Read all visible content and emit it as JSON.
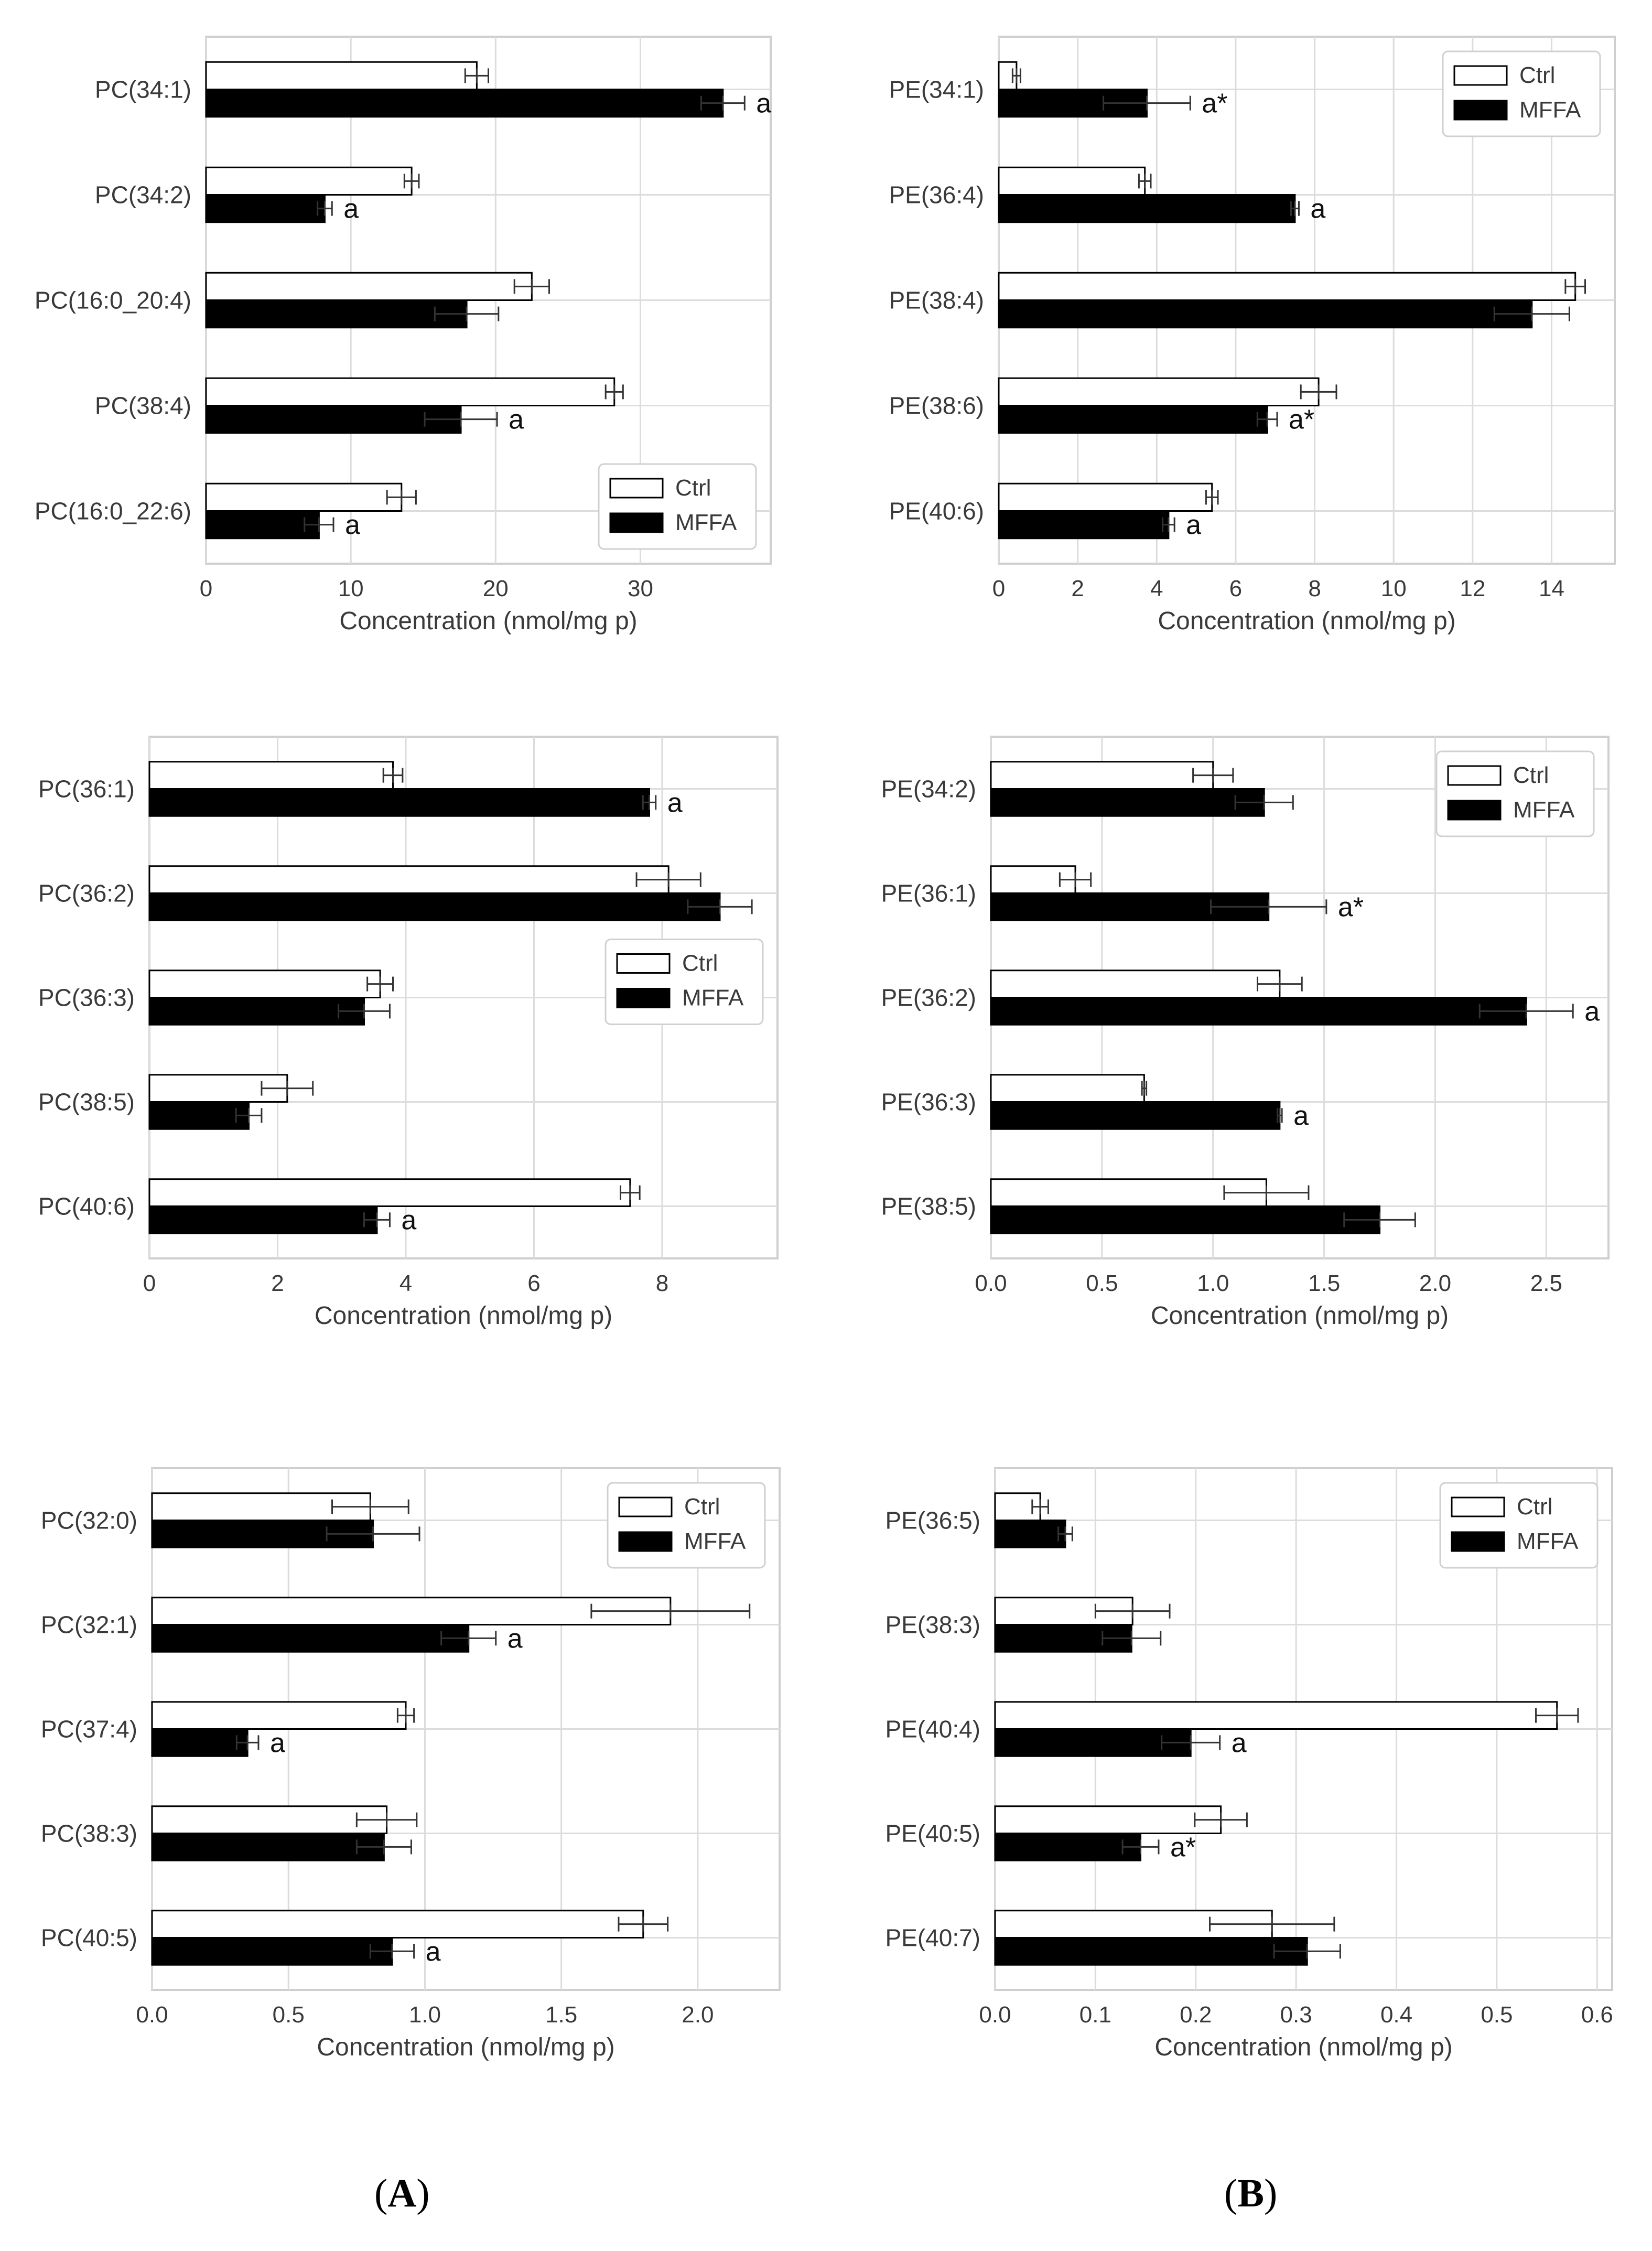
{
  "figure": {
    "panel_labels": [
      {
        "prefix": "(",
        "letter": "A",
        "suffix": ")"
      },
      {
        "prefix": "(",
        "letter": "B",
        "suffix": ")"
      }
    ],
    "legend_labels": [
      "Ctrl",
      "MFFA"
    ],
    "series_colors": {
      "Ctrl": "#ffffff",
      "MFFA": "#000000"
    }
  },
  "chart_data": [
    {
      "type": "bar",
      "orientation": "horizontal",
      "categories": [
        "PC(34:1)",
        "PC(34:2)",
        "PC(16:0_20:4)",
        "PC(38:4)",
        "PC(16:0_22:6)"
      ],
      "series": [
        {
          "name": "Ctrl",
          "values": [
            18.7,
            14.2,
            22.5,
            28.2,
            13.5
          ],
          "errors": [
            0.8,
            0.5,
            1.2,
            0.6,
            1.0
          ]
        },
        {
          "name": "MFFA",
          "values": [
            35.7,
            8.2,
            18.0,
            17.6,
            7.8
          ],
          "errors": [
            1.5,
            0.5,
            2.2,
            2.5,
            1.0
          ]
        }
      ],
      "annotations": [
        "a",
        "a",
        "",
        "a",
        "a"
      ],
      "xlabel": "Concentration (nmol/mg p)",
      "xlim": [
        0,
        39
      ],
      "xticks": [
        0,
        10,
        20,
        30
      ],
      "legend": "lower-right",
      "grid": true
    },
    {
      "type": "bar",
      "orientation": "horizontal",
      "categories": [
        "PE(34:1)",
        "PE(36:4)",
        "PE(38:4)",
        "PE(38:6)",
        "PE(40:6)"
      ],
      "series": [
        {
          "name": "Ctrl",
          "values": [
            0.45,
            3.7,
            14.6,
            8.1,
            5.4
          ],
          "errors": [
            0.1,
            0.15,
            0.25,
            0.45,
            0.15
          ]
        },
        {
          "name": "MFFA",
          "values": [
            3.75,
            7.5,
            13.5,
            6.8,
            4.3
          ],
          "errors": [
            1.1,
            0.1,
            0.95,
            0.25,
            0.15
          ]
        }
      ],
      "annotations": [
        "a*",
        "a",
        "",
        "a*",
        "a"
      ],
      "xlabel": "Concentration (nmol/mg p)",
      "xlim": [
        0,
        15.6
      ],
      "xticks": [
        0,
        2,
        4,
        6,
        8,
        10,
        12,
        14
      ],
      "legend": "upper-right",
      "grid": true
    },
    {
      "type": "bar",
      "orientation": "horizontal",
      "categories": [
        "PC(36:1)",
        "PC(36:2)",
        "PC(36:3)",
        "PC(38:5)",
        "PC(40:6)"
      ],
      "series": [
        {
          "name": "Ctrl",
          "values": [
            3.8,
            8.1,
            3.6,
            2.15,
            7.5
          ],
          "errors": [
            0.15,
            0.5,
            0.2,
            0.4,
            0.15
          ]
        },
        {
          "name": "MFFA",
          "values": [
            7.8,
            8.9,
            3.35,
            1.55,
            3.55
          ],
          "errors": [
            0.1,
            0.5,
            0.4,
            0.2,
            0.2
          ]
        }
      ],
      "annotations": [
        "a",
        "",
        "",
        "",
        "a"
      ],
      "xlabel": "Concentration (nmol/mg p)",
      "xlim": [
        0,
        9.8
      ],
      "xticks": [
        0,
        2,
        4,
        6,
        8
      ],
      "legend": "center-right",
      "grid": true
    },
    {
      "type": "bar",
      "orientation": "horizontal",
      "categories": [
        "PE(34:2)",
        "PE(36:1)",
        "PE(36:2)",
        "PE(36:3)",
        "PE(38:5)"
      ],
      "series": [
        {
          "name": "Ctrl",
          "values": [
            1.0,
            0.38,
            1.3,
            0.69,
            1.24
          ],
          "errors": [
            0.09,
            0.07,
            0.1,
            0.01,
            0.19
          ]
        },
        {
          "name": "MFFA",
          "values": [
            1.23,
            1.25,
            2.41,
            1.3,
            1.75
          ],
          "errors": [
            0.13,
            0.26,
            0.21,
            0.01,
            0.16
          ]
        }
      ],
      "annotations": [
        "",
        "a*",
        "a",
        "a",
        ""
      ],
      "xlabel": "Concentration (nmol/mg p)",
      "xlim": [
        0,
        2.78
      ],
      "xticks": [
        0.0,
        0.5,
        1.0,
        1.5,
        2.0,
        2.5
      ],
      "legend": "upper-right",
      "grid": true
    },
    {
      "type": "bar",
      "orientation": "horizontal",
      "categories": [
        "PC(32:0)",
        "PC(32:1)",
        "PC(37:4)",
        "PC(38:3)",
        "PC(40:5)"
      ],
      "series": [
        {
          "name": "Ctrl",
          "values": [
            0.8,
            1.9,
            0.93,
            0.86,
            1.8
          ],
          "errors": [
            0.14,
            0.29,
            0.03,
            0.11,
            0.09
          ]
        },
        {
          "name": "MFFA",
          "values": [
            0.81,
            1.16,
            0.35,
            0.85,
            0.88
          ],
          "errors": [
            0.17,
            0.1,
            0.04,
            0.1,
            0.08
          ]
        }
      ],
      "annotations": [
        "",
        "a",
        "a",
        "",
        "a"
      ],
      "xlabel": "Concentration (nmol/mg p)",
      "xlim": [
        0,
        2.3
      ],
      "xticks": [
        0.0,
        0.5,
        1.0,
        1.5,
        2.0
      ],
      "legend": "upper-right",
      "grid": true
    },
    {
      "type": "bar",
      "orientation": "horizontal",
      "categories": [
        "PE(36:5)",
        "PE(38:3)",
        "PE(40:4)",
        "PE(40:5)",
        "PE(40:7)"
      ],
      "series": [
        {
          "name": "Ctrl",
          "values": [
            0.045,
            0.137,
            0.56,
            0.225,
            0.276
          ],
          "errors": [
            0.008,
            0.037,
            0.021,
            0.026,
            0.062
          ]
        },
        {
          "name": "MFFA",
          "values": [
            0.07,
            0.136,
            0.195,
            0.145,
            0.311
          ],
          "errors": [
            0.007,
            0.029,
            0.029,
            0.018,
            0.033
          ]
        }
      ],
      "annotations": [
        "",
        "",
        "a",
        "a*",
        ""
      ],
      "xlabel": "Concentration (nmol/mg p)",
      "xlim": [
        0,
        0.615
      ],
      "xticks": [
        0.0,
        0.1,
        0.2,
        0.3,
        0.4,
        0.5,
        0.6
      ],
      "legend": "upper-right",
      "grid": true
    }
  ]
}
